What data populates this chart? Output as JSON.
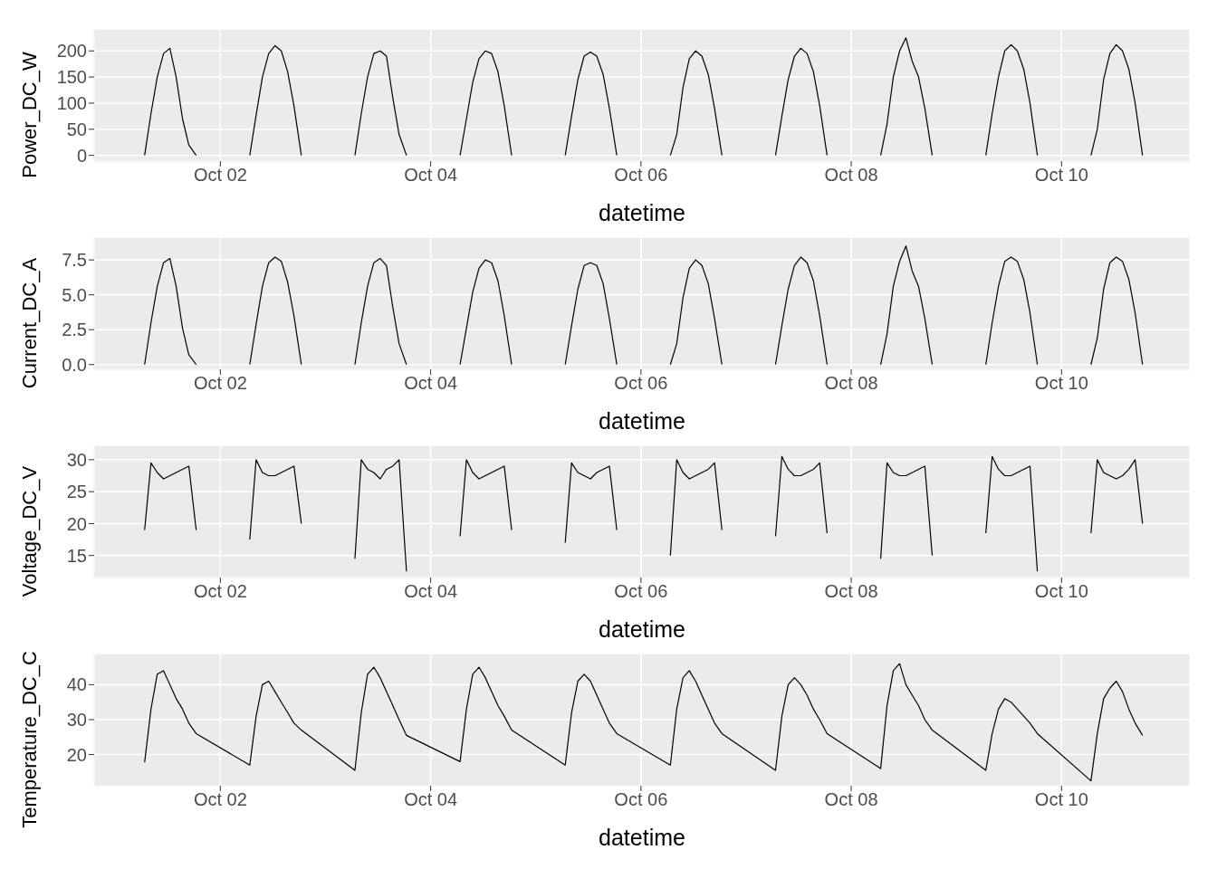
{
  "chart_data": [
    {
      "type": "line",
      "ylabel": "Power_DC_W",
      "xlabel": "datetime",
      "color": "#000000",
      "grid": true,
      "xlim": [
        "--09-30T19:12",
        "--10-11T05:17"
      ],
      "ylim": [
        -11,
        242
      ],
      "xticks": [
        {
          "value": "--10-02",
          "label": "Oct 02"
        },
        {
          "value": "--10-04",
          "label": "Oct 04"
        },
        {
          "value": "--10-06",
          "label": "Oct 06"
        },
        {
          "value": "--10-08",
          "label": "Oct 08"
        },
        {
          "value": "--10-10",
          "label": "Oct 10"
        }
      ],
      "yticks": [
        0,
        50,
        100,
        150,
        200
      ],
      "x": [
        "--10-01T06:43",
        "--10-01T08:10",
        "--10-01T09:36",
        "--10-01T11:02",
        "--10-01T12:29",
        "--10-01T13:55",
        "--10-01T15:22",
        "--10-01T16:48",
        "--10-01T18:29",
        "--10-01T21:36",
        "--10-02T06:43",
        "--10-02T08:10",
        "--10-02T09:36",
        "--10-02T11:02",
        "--10-02T12:29",
        "--10-02T13:55",
        "--10-02T15:22",
        "--10-02T16:48",
        "--10-02T18:29",
        "--10-02T21:36",
        "--10-03T06:43",
        "--10-03T08:10",
        "--10-03T09:36",
        "--10-03T11:02",
        "--10-03T12:29",
        "--10-03T13:55",
        "--10-03T15:22",
        "--10-03T16:48",
        "--10-03T18:29",
        "--10-03T21:36",
        "--10-04T06:43",
        "--10-04T08:10",
        "--10-04T09:36",
        "--10-04T11:02",
        "--10-04T12:29",
        "--10-04T13:55",
        "--10-04T15:22",
        "--10-04T16:48",
        "--10-04T18:29",
        "--10-04T21:36",
        "--10-05T06:43",
        "--10-05T08:10",
        "--10-05T09:36",
        "--10-05T11:02",
        "--10-05T12:29",
        "--10-05T13:55",
        "--10-05T15:22",
        "--10-05T16:48",
        "--10-05T18:29",
        "--10-05T21:36",
        "--10-06T06:43",
        "--10-06T08:10",
        "--10-06T09:36",
        "--10-06T11:02",
        "--10-06T12:29",
        "--10-06T13:55",
        "--10-06T15:22",
        "--10-06T16:48",
        "--10-06T18:29",
        "--10-06T21:36",
        "--10-07T06:43",
        "--10-07T08:10",
        "--10-07T09:36",
        "--10-07T11:02",
        "--10-07T12:29",
        "--10-07T13:55",
        "--10-07T15:22",
        "--10-07T16:48",
        "--10-07T18:29",
        "--10-07T21:36",
        "--10-08T06:43",
        "--10-08T08:10",
        "--10-08T09:36",
        "--10-08T11:02",
        "--10-08T12:29",
        "--10-08T13:55",
        "--10-08T15:22",
        "--10-08T16:48",
        "--10-08T18:29",
        "--10-08T21:36",
        "--10-09T06:43",
        "--10-09T08:10",
        "--10-09T09:36",
        "--10-09T11:02",
        "--10-09T12:29",
        "--10-09T13:55",
        "--10-09T15:22",
        "--10-09T16:48",
        "--10-09T18:29",
        "--10-09T21:36",
        "--10-10T06:43",
        "--10-10T08:10",
        "--10-10T09:36",
        "--10-10T11:02",
        "--10-10T12:29",
        "--10-10T13:55",
        "--10-10T15:22",
        "--10-10T16:48",
        "--10-10T18:29"
      ],
      "values": [
        0,
        80,
        150,
        195,
        205,
        150,
        70,
        20,
        0,
        null,
        0,
        77,
        150,
        195,
        210,
        200,
        160,
        95,
        0,
        null,
        0,
        80,
        150,
        195,
        200,
        190,
        110,
        40,
        0,
        null,
        0,
        70,
        140,
        185,
        200,
        195,
        160,
        95,
        0,
        null,
        0,
        75,
        145,
        190,
        198,
        190,
        155,
        90,
        0,
        null,
        0,
        40,
        130,
        185,
        200,
        190,
        155,
        90,
        0,
        null,
        0,
        75,
        145,
        190,
        205,
        195,
        160,
        95,
        0,
        null,
        0,
        60,
        150,
        200,
        225,
        180,
        150,
        90,
        0,
        null,
        0,
        80,
        150,
        200,
        212,
        200,
        165,
        100,
        0,
        null,
        0,
        50,
        145,
        195,
        212,
        200,
        165,
        100,
        0
      ]
    },
    {
      "type": "line",
      "ylabel": "Current_DC_A",
      "xlabel": "datetime",
      "color": "#000000",
      "grid": true,
      "xlim": [
        "--09-30T19:12",
        "--10-11T05:17"
      ],
      "ylim": [
        -0.34,
        9.13
      ],
      "xticks": [
        {
          "value": "--10-02",
          "label": "Oct 02"
        },
        {
          "value": "--10-04",
          "label": "Oct 04"
        },
        {
          "value": "--10-06",
          "label": "Oct 06"
        },
        {
          "value": "--10-08",
          "label": "Oct 08"
        },
        {
          "value": "--10-10",
          "label": "Oct 10"
        }
      ],
      "yticks": [
        {
          "value": 0,
          "label": "0.0"
        },
        {
          "value": 2.5,
          "label": "2.5"
        },
        {
          "value": 5,
          "label": "5.0"
        },
        {
          "value": 7.5,
          "label": "7.5"
        }
      ],
      "x": [
        "--10-01T06:43",
        "--10-01T08:10",
        "--10-01T09:36",
        "--10-01T11:02",
        "--10-01T12:29",
        "--10-01T13:55",
        "--10-01T15:22",
        "--10-01T16:48",
        "--10-01T18:29",
        "--10-01T21:36",
        "--10-02T06:43",
        "--10-02T08:10",
        "--10-02T09:36",
        "--10-02T11:02",
        "--10-02T12:29",
        "--10-02T13:55",
        "--10-02T15:22",
        "--10-02T16:48",
        "--10-02T18:29",
        "--10-02T21:36",
        "--10-03T06:43",
        "--10-03T08:10",
        "--10-03T09:36",
        "--10-03T11:02",
        "--10-03T12:29",
        "--10-03T13:55",
        "--10-03T15:22",
        "--10-03T16:48",
        "--10-03T18:29",
        "--10-03T21:36",
        "--10-04T06:43",
        "--10-04T08:10",
        "--10-04T09:36",
        "--10-04T11:02",
        "--10-04T12:29",
        "--10-04T13:55",
        "--10-04T15:22",
        "--10-04T16:48",
        "--10-04T18:29",
        "--10-04T21:36",
        "--10-05T06:43",
        "--10-05T08:10",
        "--10-05T09:36",
        "--10-05T11:02",
        "--10-05T12:29",
        "--10-05T13:55",
        "--10-05T15:22",
        "--10-05T16:48",
        "--10-05T18:29",
        "--10-05T21:36",
        "--10-06T06:43",
        "--10-06T08:10",
        "--10-06T09:36",
        "--10-06T11:02",
        "--10-06T12:29",
        "--10-06T13:55",
        "--10-06T15:22",
        "--10-06T16:48",
        "--10-06T18:29",
        "--10-06T21:36",
        "--10-07T06:43",
        "--10-07T08:10",
        "--10-07T09:36",
        "--10-07T11:02",
        "--10-07T12:29",
        "--10-07T13:55",
        "--10-07T15:22",
        "--10-07T16:48",
        "--10-07T18:29",
        "--10-07T21:36",
        "--10-08T06:43",
        "--10-08T08:10",
        "--10-08T09:36",
        "--10-08T11:02",
        "--10-08T12:29",
        "--10-08T13:55",
        "--10-08T15:22",
        "--10-08T16:48",
        "--10-08T18:29",
        "--10-08T21:36",
        "--10-09T06:43",
        "--10-09T08:10",
        "--10-09T09:36",
        "--10-09T11:02",
        "--10-09T12:29",
        "--10-09T13:55",
        "--10-09T15:22",
        "--10-09T16:48",
        "--10-09T18:29",
        "--10-09T21:36",
        "--10-10T06:43",
        "--10-10T08:10",
        "--10-10T09:36",
        "--10-10T11:02",
        "--10-10T12:29",
        "--10-10T13:55",
        "--10-10T15:22",
        "--10-10T16:48",
        "--10-10T18:29"
      ],
      "values": [
        0,
        3,
        5.6,
        7.3,
        7.6,
        5.6,
        2.6,
        0.7,
        0,
        null,
        0,
        2.9,
        5.6,
        7.3,
        7.7,
        7.4,
        5.9,
        3.5,
        0,
        null,
        0,
        3,
        5.6,
        7.3,
        7.6,
        7.1,
        4.1,
        1.5,
        0,
        null,
        0,
        2.6,
        5.2,
        6.9,
        7.5,
        7.3,
        6,
        3.5,
        0,
        null,
        0,
        2.8,
        5.4,
        7.1,
        7.3,
        7.1,
        5.8,
        3.3,
        0,
        null,
        0,
        1.5,
        4.8,
        6.9,
        7.5,
        7.1,
        5.8,
        3.3,
        0,
        null,
        0,
        2.8,
        5.4,
        7.1,
        7.7,
        7.3,
        6,
        3.5,
        0,
        null,
        0,
        2.2,
        5.6,
        7.4,
        8.5,
        6.7,
        5.6,
        3.3,
        0,
        null,
        0,
        3,
        5.6,
        7.4,
        7.7,
        7.4,
        6.1,
        3.7,
        0,
        null,
        0,
        1.9,
        5.4,
        7.3,
        7.7,
        7.4,
        6.1,
        3.7,
        0
      ]
    },
    {
      "type": "line",
      "ylabel": "Voltage_DC_V",
      "xlabel": "datetime",
      "color": "#000000",
      "grid": true,
      "xlim": [
        "--09-30T19:12",
        "--10-11T05:17"
      ],
      "ylim": [
        11.55,
        32.25
      ],
      "xticks": [
        {
          "value": "--10-02",
          "label": "Oct 02"
        },
        {
          "value": "--10-04",
          "label": "Oct 04"
        },
        {
          "value": "--10-06",
          "label": "Oct 06"
        },
        {
          "value": "--10-08",
          "label": "Oct 08"
        },
        {
          "value": "--10-10",
          "label": "Oct 10"
        }
      ],
      "yticks": [
        15,
        20,
        25,
        30
      ],
      "x": [
        "--10-01T06:43",
        "--10-01T08:10",
        "--10-01T09:36",
        "--10-01T11:02",
        "--10-01T12:29",
        "--10-01T13:55",
        "--10-01T15:22",
        "--10-01T16:48",
        "--10-01T18:29",
        "--10-01T21:36",
        "--10-02T06:43",
        "--10-02T08:10",
        "--10-02T09:36",
        "--10-02T11:02",
        "--10-02T12:29",
        "--10-02T13:55",
        "--10-02T15:22",
        "--10-02T16:48",
        "--10-02T18:29",
        "--10-02T21:36",
        "--10-03T06:43",
        "--10-03T08:10",
        "--10-03T09:36",
        "--10-03T11:02",
        "--10-03T12:29",
        "--10-03T13:55",
        "--10-03T15:22",
        "--10-03T16:48",
        "--10-03T18:29",
        "--10-03T21:36",
        "--10-04T06:43",
        "--10-04T08:10",
        "--10-04T09:36",
        "--10-04T11:02",
        "--10-04T12:29",
        "--10-04T13:55",
        "--10-04T15:22",
        "--10-04T16:48",
        "--10-04T18:29",
        "--10-04T21:36",
        "--10-05T06:43",
        "--10-05T08:10",
        "--10-05T09:36",
        "--10-05T11:02",
        "--10-05T12:29",
        "--10-05T13:55",
        "--10-05T15:22",
        "--10-05T16:48",
        "--10-05T18:29",
        "--10-05T21:36",
        "--10-06T06:43",
        "--10-06T08:10",
        "--10-06T09:36",
        "--10-06T11:02",
        "--10-06T12:29",
        "--10-06T13:55",
        "--10-06T15:22",
        "--10-06T16:48",
        "--10-06T18:29",
        "--10-06T21:36",
        "--10-07T06:43",
        "--10-07T08:10",
        "--10-07T09:36",
        "--10-07T11:02",
        "--10-07T12:29",
        "--10-07T13:55",
        "--10-07T15:22",
        "--10-07T16:48",
        "--10-07T18:29",
        "--10-07T21:36",
        "--10-08T06:43",
        "--10-08T08:10",
        "--10-08T09:36",
        "--10-08T11:02",
        "--10-08T12:29",
        "--10-08T13:55",
        "--10-08T15:22",
        "--10-08T16:48",
        "--10-08T18:29",
        "--10-08T21:36",
        "--10-09T06:43",
        "--10-09T08:10",
        "--10-09T09:36",
        "--10-09T11:02",
        "--10-09T12:29",
        "--10-09T13:55",
        "--10-09T15:22",
        "--10-09T16:48",
        "--10-09T18:29",
        "--10-09T21:36",
        "--10-10T06:43",
        "--10-10T08:10",
        "--10-10T09:36",
        "--10-10T11:02",
        "--10-10T12:29",
        "--10-10T13:55",
        "--10-10T15:22",
        "--10-10T16:48",
        "--10-10T18:29"
      ],
      "values": [
        19,
        29.5,
        28,
        27,
        27.5,
        28,
        28.5,
        29,
        19,
        null,
        17.5,
        30,
        28,
        27.5,
        27.5,
        28,
        28.5,
        29,
        20,
        null,
        14.5,
        30,
        28.5,
        28,
        27,
        28.5,
        29,
        30,
        12.5,
        null,
        18,
        30,
        28,
        27,
        27.5,
        28,
        28.5,
        29,
        19,
        null,
        17,
        29.5,
        28,
        27.5,
        27,
        28,
        28.5,
        29,
        19,
        null,
        15,
        30,
        28,
        27,
        27.5,
        28,
        28.5,
        29.5,
        19,
        null,
        18,
        30.5,
        28.5,
        27.5,
        27.5,
        28,
        28.5,
        29.5,
        18.5,
        null,
        14.5,
        29.5,
        28,
        27.5,
        27.5,
        28,
        28.5,
        29,
        15,
        null,
        18.5,
        30.5,
        28.5,
        27.5,
        27.5,
        28,
        28.5,
        29,
        12.5,
        null,
        18.5,
        30,
        28,
        27.5,
        27,
        27.5,
        28.5,
        30,
        20
      ]
    },
    {
      "type": "line",
      "ylabel": "Temperature_DC_C",
      "xlabel": "datetime",
      "color": "#000000",
      "grid": true,
      "xlim": [
        "--09-30T19:12",
        "--10-11T05:17"
      ],
      "ylim": [
        11.1,
        48.9
      ],
      "xticks": [
        {
          "value": "--10-02",
          "label": "Oct 02"
        },
        {
          "value": "--10-04",
          "label": "Oct 04"
        },
        {
          "value": "--10-06",
          "label": "Oct 06"
        },
        {
          "value": "--10-08",
          "label": "Oct 08"
        },
        {
          "value": "--10-10",
          "label": "Oct 10"
        }
      ],
      "yticks": [
        20,
        30,
        40
      ],
      "x": [
        "--10-01T06:43",
        "--10-01T08:10",
        "--10-01T09:36",
        "--10-01T11:02",
        "--10-01T12:29",
        "--10-01T13:55",
        "--10-01T15:22",
        "--10-01T16:48",
        "--10-01T18:29",
        "--10-02T06:43",
        "--10-02T08:10",
        "--10-02T09:36",
        "--10-02T11:02",
        "--10-02T12:29",
        "--10-02T13:55",
        "--10-02T15:22",
        "--10-02T16:48",
        "--10-02T18:29",
        "--10-03T06:43",
        "--10-03T08:10",
        "--10-03T09:36",
        "--10-03T11:02",
        "--10-03T12:29",
        "--10-03T13:55",
        "--10-03T15:22",
        "--10-03T16:48",
        "--10-03T18:29",
        "--10-04T06:43",
        "--10-04T08:10",
        "--10-04T09:36",
        "--10-04T11:02",
        "--10-04T12:29",
        "--10-04T13:55",
        "--10-04T15:22",
        "--10-04T16:48",
        "--10-04T18:29",
        "--10-05T06:43",
        "--10-05T08:10",
        "--10-05T09:36",
        "--10-05T11:02",
        "--10-05T12:29",
        "--10-05T13:55",
        "--10-05T15:22",
        "--10-05T16:48",
        "--10-05T18:29",
        "--10-06T06:43",
        "--10-06T08:10",
        "--10-06T09:36",
        "--10-06T11:02",
        "--10-06T12:29",
        "--10-06T13:55",
        "--10-06T15:22",
        "--10-06T16:48",
        "--10-06T18:29",
        "--10-07T06:43",
        "--10-07T08:10",
        "--10-07T09:36",
        "--10-07T11:02",
        "--10-07T12:29",
        "--10-07T13:55",
        "--10-07T15:22",
        "--10-07T16:48",
        "--10-07T18:29",
        "--10-08T06:43",
        "--10-08T08:10",
        "--10-08T09:36",
        "--10-08T11:02",
        "--10-08T12:29",
        "--10-08T13:55",
        "--10-08T15:22",
        "--10-08T16:48",
        "--10-08T18:29",
        "--10-09T06:43",
        "--10-09T08:10",
        "--10-09T09:36",
        "--10-09T11:02",
        "--10-09T12:29",
        "--10-09T13:55",
        "--10-09T15:22",
        "--10-09T16:48",
        "--10-09T18:29",
        "--10-10T06:43",
        "--10-10T08:10",
        "--10-10T09:36",
        "--10-10T11:02",
        "--10-10T12:29",
        "--10-10T13:55",
        "--10-10T15:22",
        "--10-10T16:48",
        "--10-10T18:29"
      ],
      "values": [
        17.8,
        33,
        43,
        44,
        40,
        36,
        33,
        29,
        26,
        17,
        31,
        40,
        41,
        38,
        35,
        32,
        29,
        27,
        15.5,
        32,
        43,
        45,
        42,
        38,
        34,
        30,
        25.5,
        18,
        33,
        43,
        45,
        42,
        38,
        34,
        31,
        27,
        17,
        32,
        41,
        43,
        41,
        37,
        33,
        29,
        26,
        17,
        33,
        42,
        44,
        41,
        37,
        33,
        29,
        26,
        15.5,
        31,
        40,
        42,
        40,
        37,
        33,
        30,
        26,
        16,
        34,
        44,
        46,
        40,
        37,
        34,
        30,
        27,
        15.5,
        26,
        33,
        36,
        35,
        33,
        31,
        29,
        26,
        12.5,
        26,
        36,
        39,
        41,
        38,
        33,
        29,
        25.5
      ]
    }
  ]
}
